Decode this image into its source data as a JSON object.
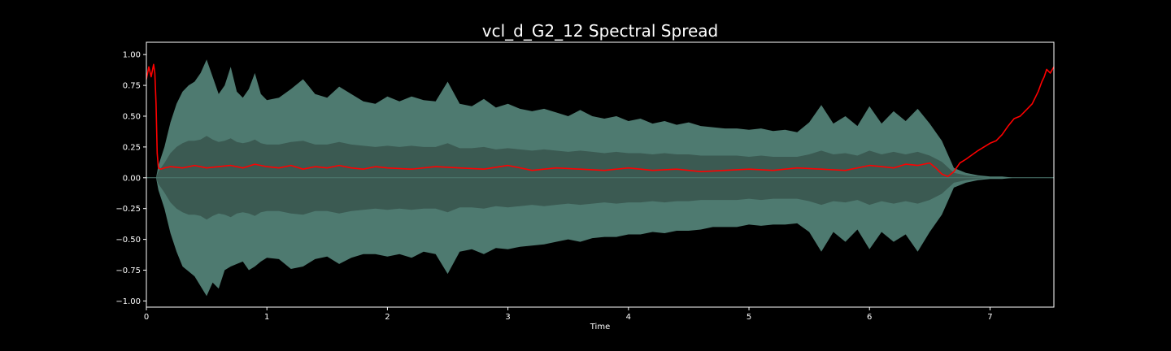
{
  "chart_data": {
    "type": "area",
    "title": "vcl_d_G2_12 Spectral Spread",
    "xlabel": "Time",
    "ylabel": "",
    "xlim": [
      0,
      7.53
    ],
    "ylim": [
      -1.05,
      1.1
    ],
    "x_ticks": [
      0,
      1,
      2,
      3,
      4,
      5,
      6,
      7
    ],
    "y_ticks": [
      1.0,
      0.75,
      0.5,
      0.25,
      0.0,
      -0.25,
      -0.5,
      -0.75,
      -1.0
    ],
    "x_tick_labels": [
      "0",
      "1",
      "2",
      "3",
      "4",
      "5",
      "6",
      "7"
    ],
    "y_tick_labels": [
      "1.00",
      "0.75",
      "0.50",
      "0.25",
      "0.00",
      "−0.25",
      "−0.50",
      "−0.75",
      "−1.00"
    ],
    "grid": false,
    "legend": "none",
    "series": [
      {
        "kind": "waveform-envelope",
        "color": "#4e7a70",
        "inner_color": "#3b5a52",
        "x": [
          0.0,
          0.08,
          0.1,
          0.15,
          0.2,
          0.25,
          0.3,
          0.35,
          0.4,
          0.45,
          0.5,
          0.55,
          0.6,
          0.65,
          0.7,
          0.75,
          0.8,
          0.85,
          0.9,
          0.95,
          1.0,
          1.1,
          1.2,
          1.3,
          1.4,
          1.5,
          1.6,
          1.7,
          1.8,
          1.9,
          2.0,
          2.1,
          2.2,
          2.3,
          2.4,
          2.5,
          2.6,
          2.7,
          2.8,
          2.9,
          3.0,
          3.1,
          3.2,
          3.3,
          3.4,
          3.5,
          3.6,
          3.7,
          3.8,
          3.9,
          4.0,
          4.1,
          4.2,
          4.3,
          4.4,
          4.5,
          4.6,
          4.7,
          4.8,
          4.9,
          5.0,
          5.1,
          5.2,
          5.3,
          5.4,
          5.5,
          5.6,
          5.7,
          5.8,
          5.9,
          6.0,
          6.1,
          6.2,
          6.3,
          6.4,
          6.5,
          6.6,
          6.7,
          6.8,
          6.9,
          7.0,
          7.1,
          7.2,
          7.3,
          7.4,
          7.53
        ],
        "upper": [
          0.0,
          0.0,
          0.1,
          0.25,
          0.45,
          0.6,
          0.7,
          0.75,
          0.78,
          0.85,
          0.96,
          0.82,
          0.68,
          0.75,
          0.9,
          0.7,
          0.65,
          0.72,
          0.85,
          0.68,
          0.63,
          0.65,
          0.72,
          0.8,
          0.68,
          0.65,
          0.74,
          0.68,
          0.62,
          0.6,
          0.66,
          0.62,
          0.66,
          0.63,
          0.62,
          0.78,
          0.6,
          0.58,
          0.64,
          0.57,
          0.6,
          0.56,
          0.54,
          0.56,
          0.53,
          0.5,
          0.55,
          0.5,
          0.48,
          0.5,
          0.46,
          0.48,
          0.44,
          0.46,
          0.43,
          0.45,
          0.42,
          0.41,
          0.4,
          0.4,
          0.39,
          0.4,
          0.38,
          0.39,
          0.37,
          0.45,
          0.59,
          0.44,
          0.5,
          0.42,
          0.58,
          0.44,
          0.54,
          0.46,
          0.56,
          0.44,
          0.3,
          0.08,
          0.04,
          0.02,
          0.01,
          0.01,
          0.0,
          0.0,
          0.0,
          0.0
        ],
        "lower": [
          0.0,
          0.0,
          -0.1,
          -0.25,
          -0.45,
          -0.6,
          -0.72,
          -0.76,
          -0.8,
          -0.88,
          -0.96,
          -0.85,
          -0.9,
          -0.75,
          -0.72,
          -0.7,
          -0.68,
          -0.75,
          -0.72,
          -0.68,
          -0.65,
          -0.66,
          -0.74,
          -0.72,
          -0.66,
          -0.64,
          -0.7,
          -0.65,
          -0.62,
          -0.62,
          -0.64,
          -0.62,
          -0.65,
          -0.6,
          -0.62,
          -0.78,
          -0.6,
          -0.58,
          -0.62,
          -0.57,
          -0.58,
          -0.56,
          -0.55,
          -0.54,
          -0.52,
          -0.5,
          -0.52,
          -0.49,
          -0.48,
          -0.48,
          -0.46,
          -0.46,
          -0.44,
          -0.45,
          -0.43,
          -0.43,
          -0.42,
          -0.4,
          -0.4,
          -0.4,
          -0.38,
          -0.39,
          -0.38,
          -0.38,
          -0.37,
          -0.44,
          -0.6,
          -0.44,
          -0.52,
          -0.42,
          -0.58,
          -0.44,
          -0.52,
          -0.46,
          -0.6,
          -0.44,
          -0.3,
          -0.08,
          -0.04,
          -0.02,
          -0.01,
          -0.01,
          0.0,
          0.0,
          0.0,
          0.0
        ],
        "inner_upper": [
          0.0,
          0.0,
          0.05,
          0.12,
          0.2,
          0.25,
          0.28,
          0.3,
          0.3,
          0.31,
          0.34,
          0.31,
          0.29,
          0.3,
          0.32,
          0.29,
          0.28,
          0.29,
          0.31,
          0.28,
          0.27,
          0.27,
          0.29,
          0.3,
          0.27,
          0.27,
          0.29,
          0.27,
          0.26,
          0.25,
          0.26,
          0.25,
          0.26,
          0.25,
          0.25,
          0.28,
          0.24,
          0.24,
          0.25,
          0.23,
          0.24,
          0.23,
          0.22,
          0.23,
          0.22,
          0.21,
          0.22,
          0.21,
          0.2,
          0.21,
          0.2,
          0.2,
          0.19,
          0.2,
          0.19,
          0.19,
          0.18,
          0.18,
          0.18,
          0.18,
          0.17,
          0.18,
          0.17,
          0.17,
          0.17,
          0.19,
          0.22,
          0.19,
          0.2,
          0.18,
          0.22,
          0.19,
          0.21,
          0.19,
          0.21,
          0.18,
          0.13,
          0.04,
          0.02,
          0.01,
          0.0,
          0.0,
          0.0,
          0.0,
          0.0,
          0.0
        ]
      },
      {
        "kind": "spectral-spread",
        "color": "#ff0000",
        "x": [
          0.0,
          0.02,
          0.04,
          0.06,
          0.07,
          0.08,
          0.09,
          0.1,
          0.12,
          0.15,
          0.2,
          0.3,
          0.4,
          0.5,
          0.6,
          0.7,
          0.8,
          0.9,
          1.0,
          1.1,
          1.2,
          1.3,
          1.4,
          1.5,
          1.6,
          1.7,
          1.8,
          1.9,
          2.0,
          2.2,
          2.4,
          2.6,
          2.8,
          3.0,
          3.2,
          3.4,
          3.6,
          3.8,
          4.0,
          4.2,
          4.4,
          4.6,
          4.8,
          5.0,
          5.2,
          5.4,
          5.6,
          5.8,
          6.0,
          6.1,
          6.2,
          6.3,
          6.4,
          6.5,
          6.55,
          6.6,
          6.65,
          6.7,
          6.75,
          6.8,
          6.9,
          7.0,
          7.05,
          7.1,
          7.15,
          7.2,
          7.25,
          7.3,
          7.35,
          7.4,
          7.43,
          7.45,
          7.47,
          7.5,
          7.53
        ],
        "values": [
          0.8,
          0.9,
          0.82,
          0.92,
          0.85,
          0.6,
          0.2,
          0.08,
          0.07,
          0.08,
          0.09,
          0.08,
          0.1,
          0.08,
          0.09,
          0.1,
          0.08,
          0.11,
          0.09,
          0.08,
          0.1,
          0.07,
          0.09,
          0.08,
          0.1,
          0.08,
          0.07,
          0.09,
          0.08,
          0.07,
          0.09,
          0.08,
          0.07,
          0.1,
          0.06,
          0.08,
          0.07,
          0.06,
          0.08,
          0.06,
          0.07,
          0.05,
          0.06,
          0.07,
          0.06,
          0.08,
          0.07,
          0.06,
          0.1,
          0.09,
          0.08,
          0.11,
          0.1,
          0.12,
          0.08,
          0.03,
          0.01,
          0.05,
          0.12,
          0.15,
          0.22,
          0.28,
          0.3,
          0.35,
          0.42,
          0.48,
          0.5,
          0.55,
          0.6,
          0.7,
          0.78,
          0.82,
          0.88,
          0.85,
          0.9
        ]
      }
    ]
  }
}
